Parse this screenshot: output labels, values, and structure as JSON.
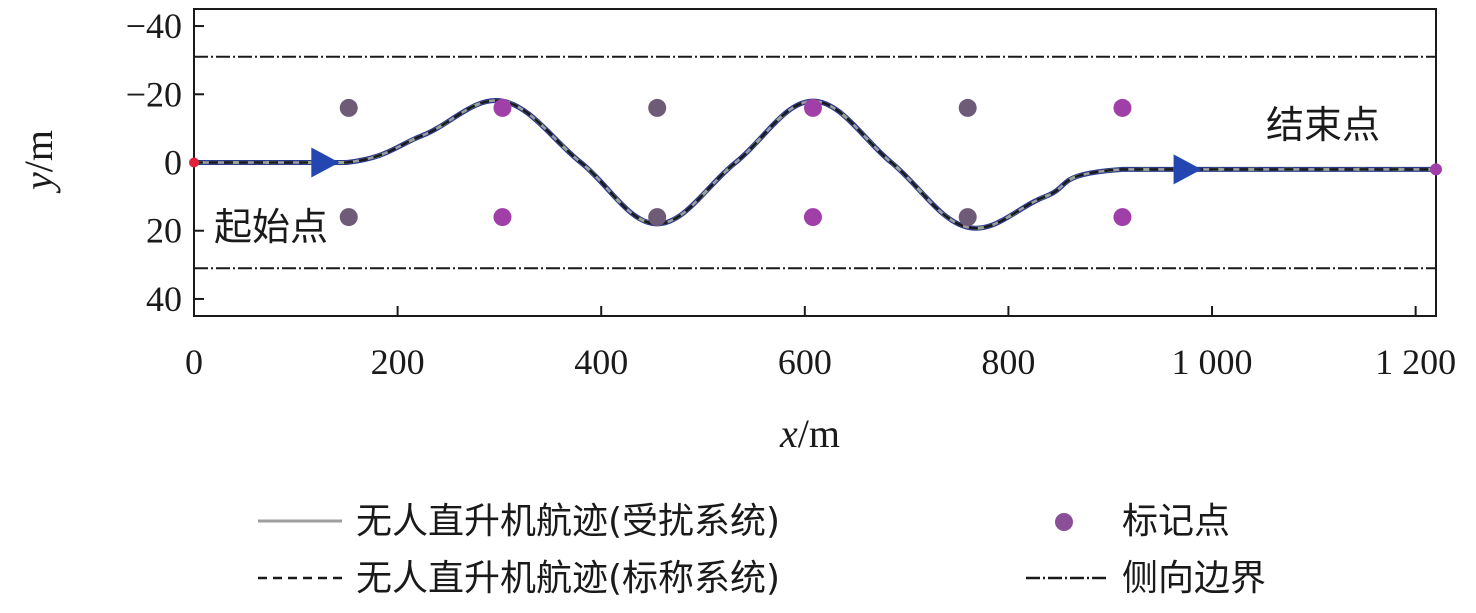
{
  "chart_data": {
    "type": "line",
    "xlabel_var": "x",
    "xlabel_unit": "/m",
    "ylabel_var": "y",
    "ylabel_unit": "/m",
    "xlim": [
      0,
      1220
    ],
    "ylim": [
      45,
      -45
    ],
    "x_ticks": [
      0,
      200,
      400,
      600,
      800,
      1000,
      1200
    ],
    "x_tick_labels": [
      "0",
      "200",
      "400",
      "600",
      "800",
      "1 000",
      "1 200"
    ],
    "y_ticks": [
      -40,
      -20,
      0,
      20,
      40
    ],
    "y_tick_labels": [
      "−40",
      "−20",
      "0",
      "20",
      "40"
    ],
    "grid": false,
    "legend_placement": "bottom",
    "boundaries_y": [
      -31,
      31
    ],
    "start_point": {
      "x": 0,
      "y": 0,
      "label": "起始点"
    },
    "end_point": {
      "x": 1220,
      "y": 2,
      "label": "结束点"
    },
    "direction_markers": [
      {
        "x": 128,
        "y": 0
      },
      {
        "x": 975,
        "y": 2
      }
    ],
    "markers": [
      {
        "x": 152,
        "y": -16
      },
      {
        "x": 303,
        "y": -16
      },
      {
        "x": 455,
        "y": -16
      },
      {
        "x": 608,
        "y": -16
      },
      {
        "x": 760,
        "y": -16
      },
      {
        "x": 912,
        "y": -16
      },
      {
        "x": 152,
        "y": 16
      },
      {
        "x": 303,
        "y": 16
      },
      {
        "x": 455,
        "y": 16
      },
      {
        "x": 608,
        "y": 16
      },
      {
        "x": 760,
        "y": 16
      },
      {
        "x": 912,
        "y": 16
      }
    ],
    "series": [
      {
        "name": "无人直升机航迹(受扰系统)",
        "style": "solid",
        "color": "#9e9e9e",
        "x": [
          0,
          150,
          225,
          303,
          380,
          455,
          532,
          608,
          685,
          760,
          836,
          912,
          1220
        ],
        "y": [
          0,
          0,
          -8,
          -18,
          0,
          18,
          0,
          -18,
          0,
          19,
          10,
          2,
          2
        ]
      },
      {
        "name": "无人直升机航迹(标称系统)",
        "style": "dashed",
        "color": "#1a1a1a",
        "x": [
          0,
          150,
          225,
          303,
          380,
          455,
          532,
          608,
          685,
          760,
          836,
          912,
          1220
        ],
        "y": [
          0,
          0,
          -8,
          -18,
          0,
          18,
          0,
          -18,
          0,
          19,
          10,
          2,
          2
        ]
      },
      {
        "name": "标记点",
        "style": "marker",
        "color": "#8b4f9a"
      },
      {
        "name": "侧向边界",
        "style": "dashdot",
        "color": "#1a1a1a"
      }
    ]
  },
  "colors": {
    "track_blue": "#2b3a8f",
    "track_green": "#7ccd4a",
    "marker_purple": "#a13fa8",
    "marker_grey": "#6e5b78",
    "arrow_blue": "#2346b0",
    "start_red": "#e0213a"
  }
}
